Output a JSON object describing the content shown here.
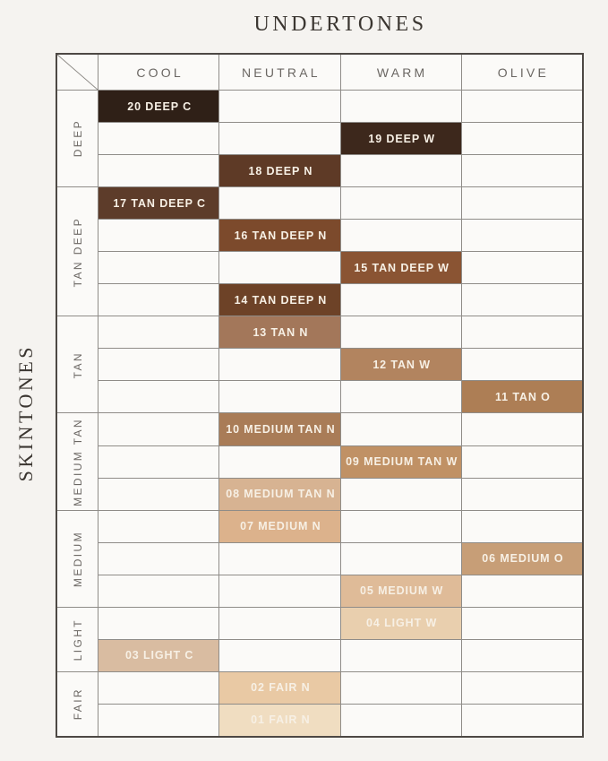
{
  "page": {
    "title": "UNDERTONES",
    "side_title": "SKINTONES"
  },
  "colors": {
    "background": "#f5f3f0",
    "cell_background": "#fbfaf8",
    "grid_line": "#8f8c88",
    "outer_border": "#4d4844",
    "header_text": "#6b6763",
    "title_text": "#3b3631",
    "swatch_text": "#f7f0e5"
  },
  "chart_data": {
    "type": "heatmap",
    "title": "UNDERTONES",
    "xlabel": "UNDERTONES",
    "ylabel": "SKINTONES",
    "legend_position": "none",
    "grid": true,
    "columns": [
      "COOL",
      "NEUTRAL",
      "WARM",
      "OLIVE"
    ],
    "row_groups": [
      {
        "label": "DEEP",
        "rows": 3
      },
      {
        "label": "TAN DEEP",
        "rows": 4
      },
      {
        "label": "TAN",
        "rows": 3
      },
      {
        "label": "MEDIUM TAN",
        "rows": 3
      },
      {
        "label": "MEDIUM",
        "rows": 3
      },
      {
        "label": "LIGHT",
        "rows": 2
      },
      {
        "label": "FAIR",
        "rows": 2
      }
    ],
    "shades": [
      {
        "label": "20 DEEP C",
        "column": "COOL",
        "skintone_group": "DEEP",
        "color": "#2f2017"
      },
      {
        "label": "19 DEEP W",
        "column": "WARM",
        "skintone_group": "DEEP",
        "color": "#3d281c"
      },
      {
        "label": "18 DEEP N",
        "column": "NEUTRAL",
        "skintone_group": "DEEP",
        "color": "#5e3a26"
      },
      {
        "label": "17 TAN DEEP C",
        "column": "COOL",
        "skintone_group": "TAN DEEP",
        "color": "#5d3c2a"
      },
      {
        "label": "16 TAN DEEP N",
        "column": "NEUTRAL",
        "skintone_group": "TAN DEEP",
        "color": "#7c4a2c"
      },
      {
        "label": "15 TAN DEEP W",
        "column": "WARM",
        "skintone_group": "TAN DEEP",
        "color": "#8a5433"
      },
      {
        "label": "14 TAN DEEP N",
        "column": "NEUTRAL",
        "skintone_group": "TAN DEEP",
        "color": "#6d4227"
      },
      {
        "label": "13 TAN N",
        "column": "NEUTRAL",
        "skintone_group": "TAN",
        "color": "#a3775a"
      },
      {
        "label": "12 TAN W",
        "column": "WARM",
        "skintone_group": "TAN",
        "color": "#b2845f"
      },
      {
        "label": "11 TAN O",
        "column": "OLIVE",
        "skintone_group": "TAN",
        "color": "#ad7e55"
      },
      {
        "label": "10 MEDIUM TAN N",
        "column": "NEUTRAL",
        "skintone_group": "MEDIUM TAN",
        "color": "#a97c57"
      },
      {
        "label": "09 MEDIUM TAN W",
        "column": "WARM",
        "skintone_group": "MEDIUM TAN",
        "color": "#c09165"
      },
      {
        "label": "08 MEDIUM TAN N",
        "column": "NEUTRAL",
        "skintone_group": "MEDIUM TAN",
        "color": "#d7b392"
      },
      {
        "label": "07 MEDIUM N",
        "column": "NEUTRAL",
        "skintone_group": "MEDIUM",
        "color": "#dcb28c"
      },
      {
        "label": "06 MEDIUM O",
        "column": "OLIVE",
        "skintone_group": "MEDIUM",
        "color": "#c79e77"
      },
      {
        "label": "05 MEDIUM W",
        "column": "WARM",
        "skintone_group": "MEDIUM",
        "color": "#dfbb98"
      },
      {
        "label": "04 LIGHT W",
        "column": "WARM",
        "skintone_group": "LIGHT",
        "color": "#e9cfae"
      },
      {
        "label": "03 LIGHT C",
        "column": "COOL",
        "skintone_group": "LIGHT",
        "color": "#d9bca1"
      },
      {
        "label": "02 FAIR N",
        "column": "NEUTRAL",
        "skintone_group": "FAIR",
        "color": "#e9c9a4"
      },
      {
        "label": "01 FAIR N",
        "column": "NEUTRAL",
        "skintone_group": "FAIR",
        "color": "#f0ddc1"
      }
    ]
  }
}
